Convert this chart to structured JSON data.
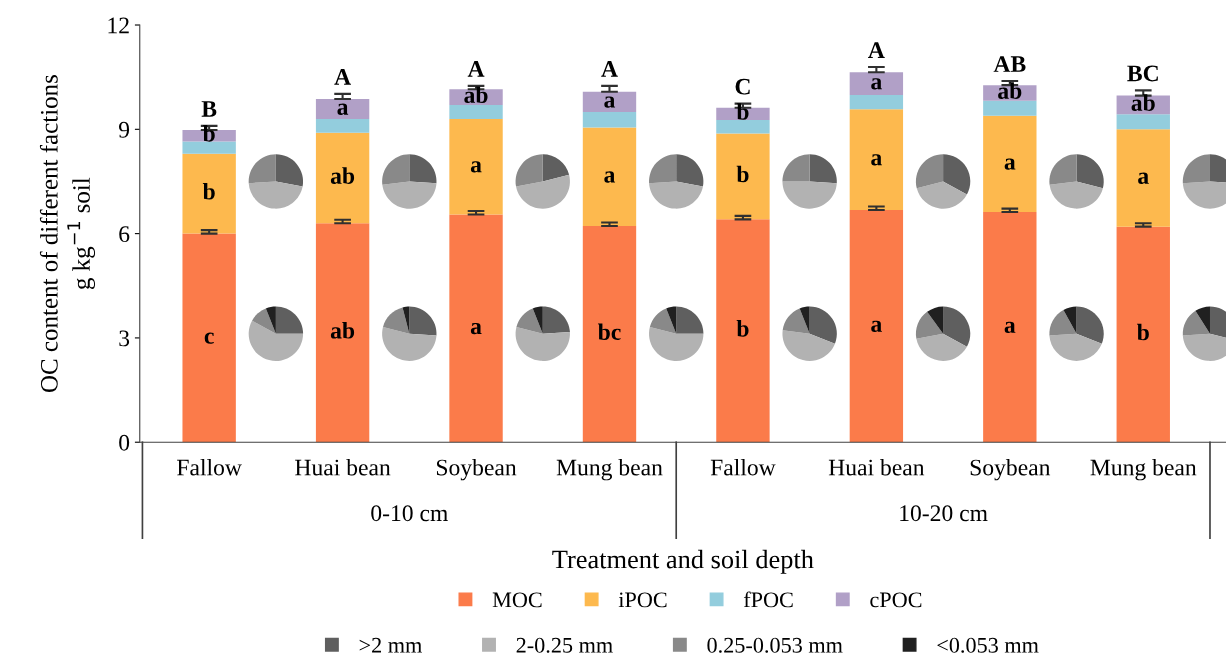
{
  "chart_data": [
    {
      "type": "bar",
      "stacked": true,
      "ylabel": "OC content of different factions\ng kg$^{−1}$ soil",
      "xlabel": "Treatment and soil depth",
      "categories": [
        "Fallow",
        "Huai bean",
        "Soybean",
        "Mung bean",
        "Fallow",
        "Huai bean",
        "Soybean",
        "Mung bean"
      ],
      "series": [
        {
          "name": "MOC",
          "color": "#fb7b4a",
          "values": [
            6.0,
            6.3,
            6.55,
            6.22,
            6.41,
            6.68,
            6.62,
            6.2
          ],
          "errors": [
            0.1,
            0.1,
            0.1,
            0.1,
            0.1,
            0.1,
            0.1,
            0.1
          ],
          "value_labels": [
            "c",
            "ab",
            "a",
            "bc",
            "b",
            "a",
            "a",
            "b"
          ]
        },
        {
          "name": "iPOC",
          "color": "#fdb94e",
          "values": [
            2.3,
            2.6,
            2.75,
            2.83,
            2.47,
            2.9,
            2.77,
            2.8
          ],
          "value_labels": [
            "b",
            "ab",
            "a",
            "a",
            "b",
            "a",
            "a",
            "a"
          ]
        },
        {
          "name": "fPOC",
          "color": "#93cddd",
          "values": [
            0.35,
            0.4,
            0.4,
            0.45,
            0.39,
            0.41,
            0.43,
            0.43
          ]
        },
        {
          "name": "cPOC",
          "color": "#b1a0c7",
          "values": [
            0.33,
            0.57,
            0.45,
            0.58,
            0.35,
            0.65,
            0.45,
            0.54
          ],
          "errors": [
            0.12,
            0.15,
            0.1,
            0.17,
            0.12,
            0.15,
            0.12,
            0.15
          ],
          "value_labels": [
            "b",
            "a",
            "ab",
            "a",
            "b",
            "a",
            "ab",
            "ab"
          ]
        }
      ],
      "totals": [
        "B",
        "A",
        "A",
        "A",
        "C",
        "A",
        "AB",
        "BC"
      ],
      "annotations": [
        "0-10 cm",
        "10-20 cm"
      ],
      "ylim": [
        0,
        12
      ],
      "yticks": [
        0,
        3,
        6,
        9,
        12
      ],
      "grid": false,
      "legend": "bottom"
    },
    {
      "type": "pie",
      "categories": [
        null,
        null,
        null
      ],
      "values": [
        28,
        46,
        26
      ],
      "colors": [
        "#5f5f5f",
        "#b2b2b2",
        "#898989"
      ]
    },
    {
      "type": "pie",
      "categories": [
        ">2 mm",
        "2-0.25 mm",
        "0.25-0.053 mm",
        "<0.053 mm"
      ],
      "values": [
        25,
        58,
        11,
        6
      ],
      "colors": [
        "#5f5f5f",
        "#b2b2b2",
        "#898989",
        "#202020"
      ],
      "legend": "bottom"
    },
    {
      "type": "pie",
      "categories": [
        null,
        null,
        null
      ],
      "values": [
        26,
        47,
        27
      ],
      "colors": [
        "#5f5f5f",
        "#b2b2b2",
        "#898989"
      ]
    },
    {
      "type": "pie",
      "categories": [
        null,
        null,
        null,
        null
      ],
      "values": [
        26,
        53,
        17,
        4
      ],
      "colors": [
        "#5f5f5f",
        "#b2b2b2",
        "#898989",
        "#202020"
      ]
    },
    {
      "type": "pie",
      "categories": [
        null,
        null,
        null
      ],
      "values": [
        21,
        51,
        28
      ],
      "colors": [
        "#5f5f5f",
        "#b2b2b2",
        "#898989"
      ]
    },
    {
      "type": "pie",
      "categories": [
        null,
        null,
        null,
        null
      ],
      "values": [
        24,
        55,
        15,
        6
      ],
      "colors": [
        "#5f5f5f",
        "#b2b2b2",
        "#898989",
        "#202020"
      ]
    },
    {
      "type": "pie",
      "categories": [
        null,
        null,
        null
      ],
      "values": [
        28,
        46,
        26
      ],
      "colors": [
        "#5f5f5f",
        "#b2b2b2",
        "#898989"
      ]
    },
    {
      "type": "pie",
      "categories": [
        null,
        null,
        null,
        null
      ],
      "values": [
        25,
        54,
        15,
        6
      ],
      "colors": [
        "#5f5f5f",
        "#b2b2b2",
        "#898989",
        "#202020"
      ]
    },
    {
      "type": "pie",
      "categories": [
        null,
        null,
        null
      ],
      "values": [
        26,
        49,
        25
      ],
      "colors": [
        "#5f5f5f",
        "#b2b2b2",
        "#898989"
      ]
    },
    {
      "type": "pie",
      "categories": [
        null,
        null,
        null,
        null
      ],
      "values": [
        31,
        46,
        17,
        6
      ],
      "colors": [
        "#5f5f5f",
        "#b2b2b2",
        "#898989",
        "#202020"
      ]
    },
    {
      "type": "pie",
      "categories": [
        null,
        null,
        null
      ],
      "values": [
        33,
        38,
        29
      ],
      "colors": [
        "#5f5f5f",
        "#b2b2b2",
        "#898989"
      ]
    },
    {
      "type": "pie",
      "categories": [
        null,
        null,
        null,
        null
      ],
      "values": [
        33,
        39,
        18,
        10
      ],
      "colors": [
        "#5f5f5f",
        "#b2b2b2",
        "#898989",
        "#202020"
      ]
    },
    {
      "type": "pie",
      "categories": [
        null,
        null,
        null
      ],
      "values": [
        29,
        44,
        27
      ],
      "colors": [
        "#5f5f5f",
        "#b2b2b2",
        "#898989"
      ]
    },
    {
      "type": "pie",
      "categories": [
        null,
        null,
        null,
        null
      ],
      "values": [
        31,
        43,
        18,
        8
      ],
      "colors": [
        "#5f5f5f",
        "#b2b2b2",
        "#898989",
        "#202020"
      ]
    },
    {
      "type": "pie",
      "categories": [
        null,
        null,
        null
      ],
      "values": [
        26,
        48,
        26
      ],
      "colors": [
        "#5f5f5f",
        "#b2b2b2",
        "#898989"
      ]
    },
    {
      "type": "pie",
      "categories": [
        null,
        null,
        null,
        null
      ],
      "values": [
        29,
        45,
        17,
        9
      ],
      "colors": [
        "#5f5f5f",
        "#b2b2b2",
        "#898989",
        "#202020"
      ]
    }
  ]
}
